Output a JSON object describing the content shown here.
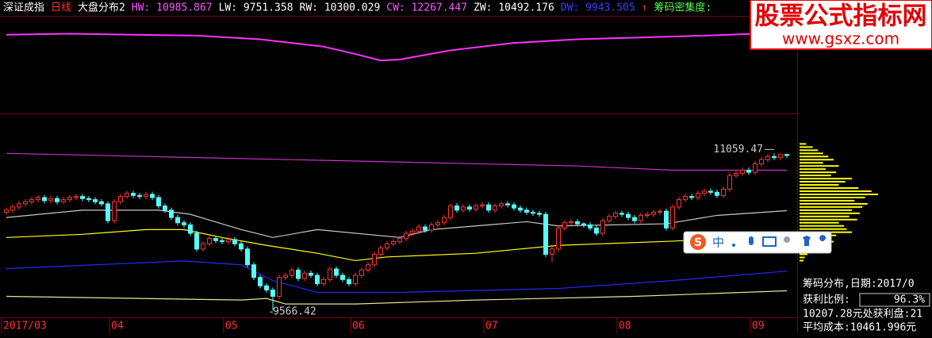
{
  "chart_data": {
    "type": "candlestick",
    "header": [
      {
        "text": "深证成指",
        "color": "#ffffff"
      },
      {
        "text": "日线",
        "color": "#ff3232"
      },
      {
        "text": "大盘分布2",
        "color": "#ffffff"
      },
      {
        "text": "HW: 10985.867",
        "color": "#ff54ff"
      },
      {
        "text": "LW: 9751.358",
        "color": "#ffffff"
      },
      {
        "text": "RW: 10300.029",
        "color": "#ffffff"
      },
      {
        "text": "CW: 12267.447",
        "color": "#ff54ff"
      },
      {
        "text": "ZW: 10492.176",
        "color": "#ffffff"
      },
      {
        "text": "DW: 9943.505",
        "color": "#3c3cff"
      },
      {
        "text": "↑",
        "color": "#ff3232"
      },
      {
        "text": "筹码密集度:",
        "color": "#54fc54"
      }
    ],
    "categories": [
      "2017/03",
      "04",
      "05",
      "06",
      "07",
      "08",
      "09"
    ],
    "category_index": [
      0,
      17,
      35,
      55,
      76,
      97,
      118
    ],
    "up_color": "#ff3232",
    "down_color": "#54fcfc",
    "ylim": [
      9515,
      11417
    ],
    "candles": [
      [
        10500,
        10545,
        10475,
        10520
      ],
      [
        10520,
        10575,
        10495,
        10550
      ],
      [
        10550,
        10605,
        10525,
        10580
      ],
      [
        10580,
        10625,
        10555,
        10600
      ],
      [
        10600,
        10645,
        10575,
        10620
      ],
      [
        10620,
        10665,
        10595,
        10640
      ],
      [
        10640,
        10665,
        10585,
        10610
      ],
      [
        10610,
        10655,
        10585,
        10630
      ],
      [
        10630,
        10655,
        10575,
        10600
      ],
      [
        10600,
        10645,
        10575,
        10620
      ],
      [
        10620,
        10665,
        10595,
        10640
      ],
      [
        10640,
        10675,
        10615,
        10650
      ],
      [
        10650,
        10675,
        10605,
        10630
      ],
      [
        10630,
        10655,
        10595,
        10620
      ],
      [
        10620,
        10645,
        10575,
        10600
      ],
      [
        10600,
        10625,
        10555,
        10580
      ],
      [
        10580,
        10605,
        10395,
        10420
      ],
      [
        10420,
        10625,
        10395,
        10600
      ],
      [
        10600,
        10675,
        10575,
        10650
      ],
      [
        10650,
        10705,
        10625,
        10680
      ],
      [
        10680,
        10705,
        10635,
        10660
      ],
      [
        10660,
        10685,
        10625,
        10650
      ],
      [
        10650,
        10695,
        10625,
        10670
      ],
      [
        10670,
        10695,
        10615,
        10640
      ],
      [
        10640,
        10665,
        10535,
        10560
      ],
      [
        10560,
        10585,
        10495,
        10520
      ],
      [
        10520,
        10545,
        10425,
        10450
      ],
      [
        10450,
        10475,
        10375,
        10400
      ],
      [
        10400,
        10425,
        10355,
        10380
      ],
      [
        10380,
        10405,
        10275,
        10300
      ],
      [
        10300,
        10325,
        10125,
        10150
      ],
      [
        10150,
        10225,
        10125,
        10200
      ],
      [
        10200,
        10275,
        10175,
        10250
      ],
      [
        10250,
        10275,
        10205,
        10230
      ],
      [
        10230,
        10255,
        10195,
        10220
      ],
      [
        10220,
        10265,
        10195,
        10240
      ],
      [
        10240,
        10265,
        10175,
        10200
      ],
      [
        10200,
        10225,
        10125,
        10150
      ],
      [
        10150,
        10175,
        9975,
        10000
      ],
      [
        10000,
        10025,
        9855,
        9880
      ],
      [
        9880,
        9905,
        9775,
        9800
      ],
      [
        9800,
        9825,
        9735,
        9760
      ],
      [
        9760,
        9785,
        9566.42,
        9700
      ],
      [
        9700,
        9905,
        9675,
        9880
      ],
      [
        9880,
        9925,
        9855,
        9900
      ],
      [
        9900,
        9975,
        9875,
        9950
      ],
      [
        9950,
        9975,
        9845,
        9870
      ],
      [
        9870,
        9945,
        9845,
        9920
      ],
      [
        9920,
        9945,
        9875,
        9900
      ],
      [
        9900,
        9925,
        9795,
        9820
      ],
      [
        9820,
        9885,
        9795,
        9860
      ],
      [
        9860,
        9985,
        9835,
        9960
      ],
      [
        9960,
        9985,
        9875,
        9900
      ],
      [
        9900,
        9925,
        9835,
        9860
      ],
      [
        9860,
        9885,
        9795,
        9820
      ],
      [
        9820,
        9925,
        9795,
        9900
      ],
      [
        9900,
        9975,
        9875,
        9950
      ],
      [
        9950,
        10025,
        9925,
        10000
      ],
      [
        10000,
        10125,
        9975,
        10100
      ],
      [
        10100,
        10185,
        10075,
        10160
      ],
      [
        10160,
        10225,
        10135,
        10200
      ],
      [
        10200,
        10245,
        10175,
        10220
      ],
      [
        10220,
        10275,
        10195,
        10250
      ],
      [
        10250,
        10325,
        10225,
        10300
      ],
      [
        10300,
        10345,
        10275,
        10320
      ],
      [
        10320,
        10385,
        10295,
        10360
      ],
      [
        10360,
        10385,
        10305,
        10330
      ],
      [
        10330,
        10405,
        10305,
        10380
      ],
      [
        10380,
        10425,
        10355,
        10400
      ],
      [
        10400,
        10475,
        10375,
        10450
      ],
      [
        10450,
        10585,
        10425,
        10560
      ],
      [
        10560,
        10585,
        10495,
        10520
      ],
      [
        10520,
        10575,
        10495,
        10550
      ],
      [
        10550,
        10575,
        10505,
        10530
      ],
      [
        10530,
        10585,
        10505,
        10560
      ],
      [
        10560,
        10595,
        10535,
        10570
      ],
      [
        10570,
        10595,
        10495,
        10520
      ],
      [
        10520,
        10585,
        10495,
        10560
      ],
      [
        10560,
        10605,
        10535,
        10580
      ],
      [
        10580,
        10605,
        10545,
        10570
      ],
      [
        10570,
        10595,
        10515,
        10540
      ],
      [
        10540,
        10565,
        10495,
        10520
      ],
      [
        10520,
        10545,
        10475,
        10500
      ],
      [
        10500,
        10525,
        10465,
        10490
      ],
      [
        10490,
        10515,
        10455,
        10480
      ],
      [
        10480,
        10505,
        10075,
        10100
      ],
      [
        10100,
        10175,
        10025,
        10150
      ],
      [
        10150,
        10375,
        10125,
        10350
      ],
      [
        10350,
        10425,
        10325,
        10400
      ],
      [
        10400,
        10435,
        10375,
        10410
      ],
      [
        10410,
        10435,
        10365,
        10390
      ],
      [
        10390,
        10405,
        10355,
        10380
      ],
      [
        10380,
        10405,
        10325,
        10350
      ],
      [
        10350,
        10375,
        10275,
        10300
      ],
      [
        10300,
        10445,
        10275,
        10420
      ],
      [
        10420,
        10485,
        10395,
        10460
      ],
      [
        10460,
        10515,
        10435,
        10490
      ],
      [
        10490,
        10515,
        10455,
        10480
      ],
      [
        10480,
        10505,
        10425,
        10450
      ],
      [
        10450,
        10475,
        10395,
        10420
      ],
      [
        10420,
        10495,
        10395,
        10470
      ],
      [
        10470,
        10505,
        10445,
        10480
      ],
      [
        10480,
        10525,
        10455,
        10500
      ],
      [
        10500,
        10535,
        10475,
        10510
      ],
      [
        10510,
        10535,
        10325,
        10350
      ],
      [
        10350,
        10575,
        10325,
        10550
      ],
      [
        10550,
        10645,
        10525,
        10620
      ],
      [
        10620,
        10675,
        10595,
        10650
      ],
      [
        10650,
        10675,
        10615,
        10640
      ],
      [
        10640,
        10705,
        10615,
        10680
      ],
      [
        10680,
        10725,
        10655,
        10700
      ],
      [
        10700,
        10725,
        10665,
        10690
      ],
      [
        10690,
        10715,
        10635,
        10660
      ],
      [
        10660,
        10745,
        10635,
        10720
      ],
      [
        10720,
        10875,
        10695,
        10850
      ],
      [
        10850,
        10895,
        10825,
        10870
      ],
      [
        10870,
        10925,
        10845,
        10900
      ],
      [
        10900,
        10925,
        10855,
        10880
      ],
      [
        10880,
        10985,
        10855,
        10960
      ],
      [
        10960,
        11025,
        10935,
        11000
      ],
      [
        11000,
        11055,
        10975,
        11030
      ],
      [
        11030,
        11059.47,
        10995,
        11020
      ],
      [
        11020,
        11055,
        10995,
        11050
      ],
      [
        11050,
        11058,
        11015,
        11040
      ]
    ],
    "annotations": [
      {
        "text": "11059.47",
        "candle": 121
      },
      {
        "text": "9566.42",
        "candle": 42
      }
    ],
    "lines": [
      {
        "color": "#c832c8",
        "x": [
          0,
          30,
          60,
          90,
          105,
          123
        ],
        "values": [
          11060,
          11020,
          10980,
          10940,
          10900,
          10900
        ]
      },
      {
        "color": "#c8c8c8",
        "x": [
          0,
          12,
          24,
          29,
          37,
          42,
          49,
          62,
          67,
          74,
          82,
          87,
          104,
          112,
          123
        ],
        "values": [
          10450,
          10520,
          10520,
          10480,
          10335,
          10260,
          10335,
          10260,
          10335,
          10370,
          10410,
          10370,
          10390,
          10470,
          10515
        ]
      },
      {
        "color": "#ffff00",
        "x": [
          0,
          12,
          22,
          28,
          34,
          41,
          49,
          55,
          60,
          74,
          87,
          105,
          123
        ],
        "values": [
          10260,
          10290,
          10335,
          10335,
          10260,
          10185,
          10110,
          10040,
          10075,
          10110,
          10185,
          10225,
          10285
        ]
      },
      {
        "color": "#2828ff",
        "x": [
          0,
          28,
          37,
          42,
          49,
          62,
          87,
          105,
          123
        ],
        "values": [
          9963,
          10037,
          10000,
          9850,
          9738,
          9738,
          9775,
          9850,
          9940
        ]
      },
      {
        "color": "#e6e696",
        "x": [
          0,
          37,
          41,
          44,
          55,
          74,
          99,
          123
        ],
        "values": [
          9700,
          9665,
          9680,
          9627,
          9627,
          9665,
          9700,
          9753
        ]
      }
    ],
    "top_panel": {
      "color": "#ff32ff",
      "ylim": [
        0,
        100
      ],
      "x": [
        0,
        10,
        20,
        30,
        40,
        50,
        55,
        59,
        62,
        70,
        80,
        90,
        100,
        110,
        118,
        123
      ],
      "values": [
        83,
        84,
        83,
        82,
        78,
        70,
        62,
        55,
        56,
        66,
        74,
        78,
        80,
        82,
        84,
        86
      ]
    },
    "profile": {
      "color": "#ffff00",
      "prices": [
        11150,
        11120,
        11090,
        11060,
        11030,
        11000,
        10970,
        10940,
        10910,
        10880,
        10850,
        10820,
        10790,
        10760,
        10730,
        10700,
        10670,
        10640,
        10610,
        10580,
        10550,
        10520,
        10490,
        10460,
        10430,
        10400,
        10370,
        10340,
        10310,
        10280,
        10250,
        10220,
        10190,
        10160,
        10130,
        10100,
        10070,
        10040
      ],
      "values": [
        5,
        10,
        14,
        18,
        22,
        26,
        18,
        30,
        20,
        28,
        24,
        40,
        35,
        30,
        45,
        55,
        60,
        50,
        42,
        52,
        48,
        40,
        46,
        38,
        44,
        30,
        34,
        36,
        40,
        28,
        22,
        26,
        14,
        10,
        8,
        6,
        4,
        3
      ]
    },
    "panel": {
      "lines": [
        "筹码分布,日期:2017/0",
        "获利比例:",
        "10207.28元处获利盘:21",
        "平均成本:10461.996元"
      ],
      "ratio": "96.3%"
    },
    "watermark": {
      "title": "股票公式指标网",
      "url": "www.gsxz.com"
    },
    "ime": "中"
  }
}
